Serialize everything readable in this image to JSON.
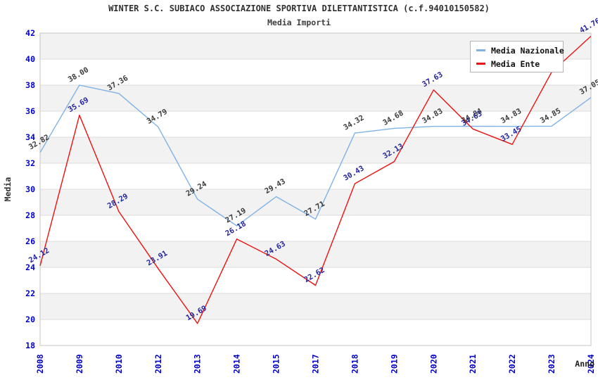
{
  "header": {
    "title": "WINTER S.C. SUBIACO ASSOCIAZIONE SPORTIVA DILETTANTISTICA (c.f.94010150582)",
    "subtitle": "Media Importi"
  },
  "legend": {
    "items": [
      {
        "label": "Media Nazionale",
        "color": "#7FB2E5"
      },
      {
        "label": "Media Ente",
        "color": "#EE1111"
      }
    ]
  },
  "axes": {
    "y_title": "Media",
    "x_title": "Anno",
    "y_min": 18,
    "y_max": 42,
    "y_ticks": [
      42,
      40,
      38,
      36,
      34,
      32,
      30,
      28,
      26,
      24,
      22,
      20,
      18
    ],
    "tick_color": "#0000CC",
    "grid_color": "#DCDCDC",
    "frame_color": "#C4C4C4"
  },
  "chart_data": {
    "type": "line",
    "title": "WINTER S.C. SUBIACO ASSOCIAZIONE SPORTIVA DILETTANTISTICA (c.f.94010150582)",
    "subtitle": "Media Importi",
    "xlabel": "Anno",
    "ylabel": "Media",
    "ylim": [
      18,
      42
    ],
    "grid": "horizontal",
    "band_color": "#F2F2F2",
    "legend_position": "top-right",
    "categories": [
      "2008",
      "2009",
      "2010",
      "2012",
      "2013",
      "2014",
      "2015",
      "2017",
      "2018",
      "2019",
      "2020",
      "2021",
      "2022",
      "2023",
      "2024"
    ],
    "series": [
      {
        "name": "Media Nazionale",
        "color": "#7FB2E5",
        "label_color": "#3A3A3A",
        "values": [
          32.82,
          38.0,
          37.36,
          34.79,
          29.24,
          27.19,
          29.43,
          27.71,
          34.32,
          34.68,
          34.83,
          34.84,
          34.83,
          34.85,
          37.05
        ],
        "labels": [
          "32.82",
          "38.00",
          "37.36",
          "34.79",
          "29.24",
          "27.19",
          "29.43",
          "27.71",
          "34.32",
          "34.68",
          "34.83",
          "34.84",
          "34.83",
          "34.85",
          "37.05"
        ]
      },
      {
        "name": "Media Ente",
        "color": "#EE1111",
        "label_color": "#2323A0",
        "values": [
          24.12,
          35.69,
          28.29,
          23.91,
          19.69,
          26.18,
          24.63,
          22.62,
          30.43,
          32.13,
          37.63,
          34.63,
          33.45,
          39.0,
          41.76
        ],
        "labels": [
          "24.12",
          "35.69",
          "28.29",
          "23.91",
          "19.69",
          "26.18",
          "24.63",
          "22.62",
          "30.43",
          "32.13",
          "37.63",
          "34.63",
          "33.45",
          null,
          "41.76"
        ]
      }
    ]
  }
}
